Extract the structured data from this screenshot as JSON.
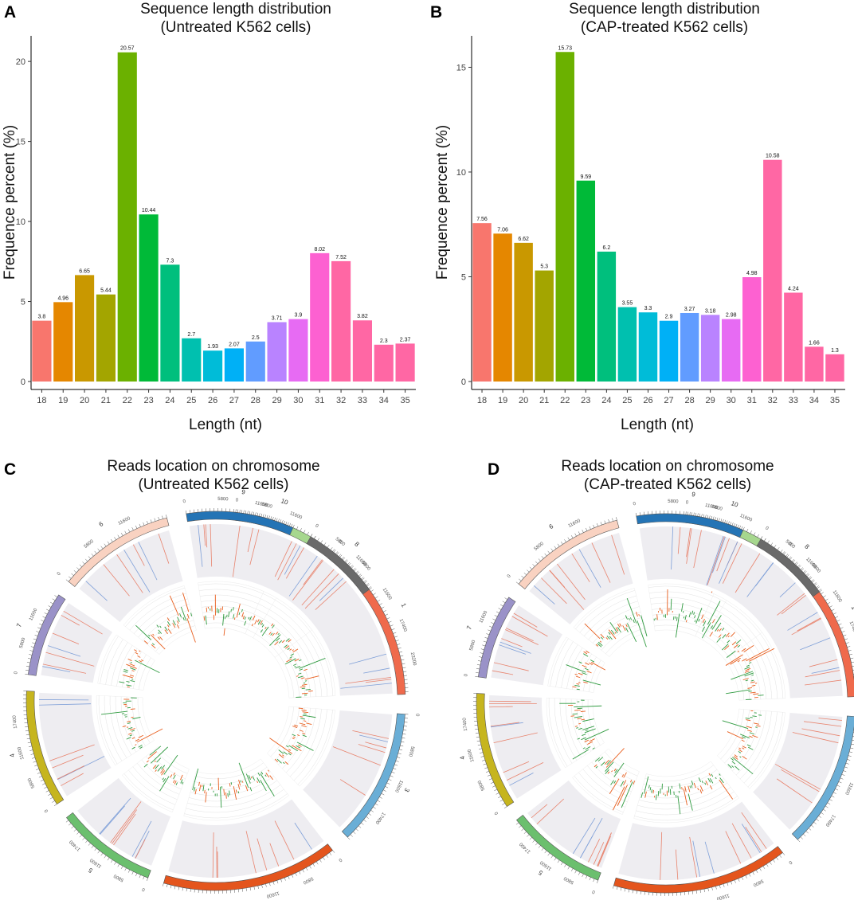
{
  "chart_data": [
    {
      "panel": "A",
      "type": "bar",
      "title": "Sequence length distribution",
      "subtitle": "(Untreated K562 cells)",
      "xlabel": "Length (nt)",
      "ylabel": "Frequence percent (%)",
      "categories": [
        "18",
        "19",
        "20",
        "21",
        "22",
        "23",
        "24",
        "25",
        "26",
        "27",
        "28",
        "29",
        "30",
        "31",
        "32",
        "33",
        "34",
        "35"
      ],
      "values": [
        3.8,
        4.96,
        6.65,
        5.44,
        20.57,
        10.44,
        7.3,
        2.7,
        1.93,
        2.07,
        2.5,
        3.71,
        3.9,
        8.02,
        7.52,
        3.82,
        2.3,
        2.37
      ],
      "value_labels": [
        "3.8",
        "4.96",
        "6.65",
        "5.44",
        "20.57",
        "10.44",
        "7.3",
        "2.7",
        "1.93",
        "2.07",
        "2.5",
        "3.71",
        "3.9",
        "8.02",
        "7.52",
        "3.82",
        "2.3",
        "2.37"
      ],
      "yticks": [
        0,
        5,
        10,
        15,
        20
      ],
      "ylim": [
        0,
        21.6
      ]
    },
    {
      "panel": "B",
      "type": "bar",
      "title": "Sequence length distribution",
      "subtitle": "(CAP-treated K562 cells)",
      "xlabel": "Length (nt)",
      "ylabel": "Frequence percent (%)",
      "categories": [
        "18",
        "19",
        "20",
        "21",
        "22",
        "23",
        "24",
        "25",
        "26",
        "27",
        "28",
        "29",
        "30",
        "31",
        "32",
        "33",
        "34",
        "35"
      ],
      "values": [
        7.56,
        7.06,
        6.62,
        5.3,
        15.73,
        9.59,
        6.2,
        3.55,
        3.3,
        2.9,
        3.27,
        3.18,
        2.98,
        4.98,
        10.58,
        4.24,
        1.66,
        1.3
      ],
      "value_labels": [
        "7.56",
        "7.06",
        "6.62",
        "5.3",
        "15.73",
        "9.59",
        "6.2",
        "3.55",
        "3.3",
        "2.9",
        "3.27",
        "3.18",
        "2.98",
        "4.98",
        "10.58",
        "4.24",
        "1.66",
        "1.3"
      ],
      "yticks": [
        0,
        5,
        10,
        15
      ],
      "ylim": [
        0,
        16.5
      ]
    }
  ],
  "bar_colors": [
    "#F8766D",
    "#E58700",
    "#C99800",
    "#A3A500",
    "#6BB100",
    "#00BA38",
    "#00BF7D",
    "#00C0AF",
    "#00BCD8",
    "#00B0F6",
    "#619CFF",
    "#B983FF",
    "#E76BF3",
    "#FD61D1",
    "#FF67A4"
  ],
  "circos": [
    {
      "panel": "C",
      "title": "Reads location on chromosome",
      "subtitle": "(Untreated K562 cells)",
      "seed": 7
    },
    {
      "panel": "D",
      "title": "Reads location on chromosome",
      "subtitle": "(CAP-treated K562 cells)",
      "seed": 23
    }
  ],
  "chromosomes": [
    {
      "name": "10",
      "color": "#a6d78e",
      "ticks": [
        "0",
        "5800",
        "11600"
      ]
    },
    {
      "name": "1",
      "color": "#ef6a4c",
      "ticks": [
        "0",
        "5800",
        "11600",
        "17400",
        "23200"
      ]
    },
    {
      "name": "3",
      "color": "#6aaed6",
      "ticks": [
        "0",
        "5800",
        "11600",
        "17400"
      ]
    },
    {
      "name": "2",
      "color": "#e4551d",
      "ticks": [
        "0",
        "5800",
        "11600",
        "17400",
        "23200"
      ]
    },
    {
      "name": "5",
      "color": "#6bbf6e",
      "ticks": [
        "0",
        "5800",
        "11600",
        "17400"
      ]
    },
    {
      "name": "4",
      "color": "#c6b51e",
      "ticks": [
        "0",
        "5800",
        "11600",
        "17400"
      ]
    },
    {
      "name": "7",
      "color": "#9a92c8",
      "ticks": [
        "0",
        "5800",
        "11600"
      ]
    },
    {
      "name": "6",
      "color": "#f9d2c1",
      "ticks": [
        "0",
        "5800",
        "11600"
      ]
    },
    {
      "name": "9",
      "color": "#2474b5",
      "ticks": [
        "0",
        "5800",
        "11600"
      ]
    },
    {
      "name": "8",
      "color": "#6a6a6a",
      "ticks": [
        "0",
        "5800",
        "11600"
      ]
    }
  ]
}
